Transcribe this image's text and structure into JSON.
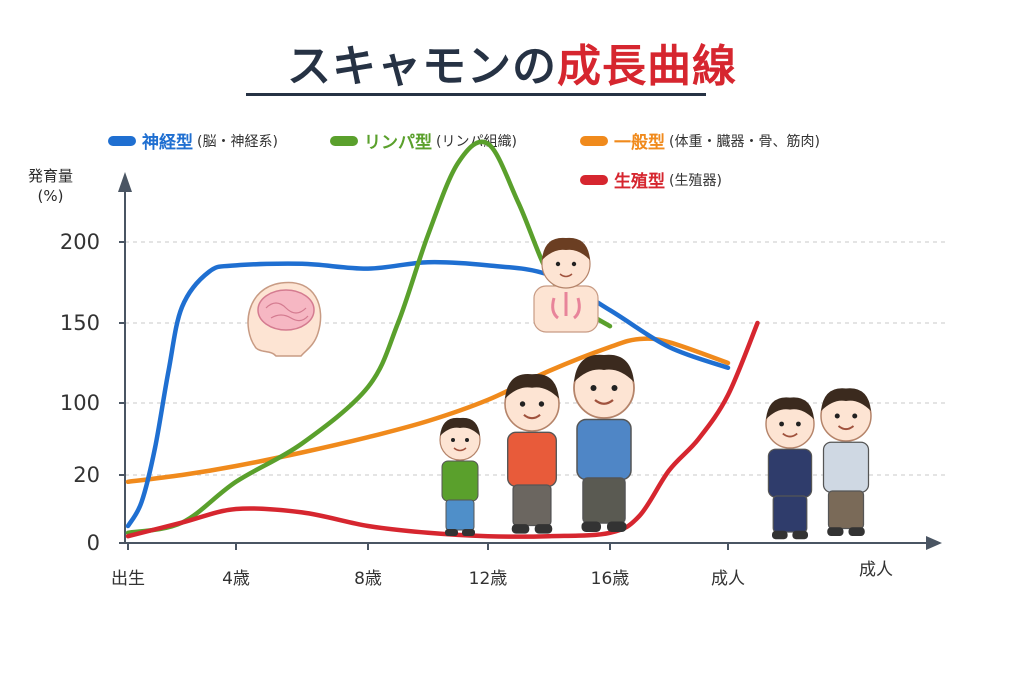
{
  "title": {
    "part1": "スキャモンの",
    "part2": "成長曲線"
  },
  "legend": [
    {
      "name": "神経型",
      "desc": "(脳・神経系)",
      "color": "#1f6fd1"
    },
    {
      "name": "リンパ型",
      "desc": "(リンパ組織)",
      "color": "#5aa02c"
    },
    {
      "name": "一般型",
      "desc": "(体重・臓器・骨、筋肉)",
      "color": "#f08a1c"
    },
    {
      "name": "生殖型",
      "desc": "(生殖器)",
      "color": "#d6262f"
    }
  ],
  "chart_data": {
    "type": "line",
    "title": "スキャモンの成長曲線",
    "ylabel": "発育量\n(%)",
    "ylabel_line1": "発育量",
    "ylabel_line2": "(%)",
    "xlabel": "",
    "x_ticks": [
      "出生",
      "4歳",
      "8歳",
      "12歳",
      "16歳",
      "成人"
    ],
    "x_end_label": "成人",
    "y_ticks": [
      "0",
      "20",
      "100",
      "150",
      "200"
    ],
    "grid": true,
    "legend_position": "top",
    "series": [
      {
        "name": "神経型",
        "x": [
          0,
          0.5,
          1,
          1.5,
          2,
          3,
          4,
          6,
          8,
          10,
          12,
          14,
          16,
          18,
          20
        ],
        "y": [
          5,
          12,
          50,
          120,
          160,
          182,
          186,
          187,
          184,
          188,
          186,
          180,
          158,
          135,
          122
        ]
      },
      {
        "name": "リンパ型",
        "x": [
          0,
          2,
          4,
          6,
          8,
          9,
          10,
          11,
          12,
          13,
          14,
          15,
          16
        ],
        "y": [
          3,
          6,
          18,
          55,
          110,
          150,
          205,
          250,
          262,
          225,
          180,
          160,
          148
        ]
      },
      {
        "name": "一般型",
        "x": [
          0,
          2,
          4,
          6,
          8,
          10,
          12,
          14,
          16,
          17,
          18,
          20
        ],
        "y": [
          18,
          20,
          30,
          45,
          62,
          80,
          102,
          120,
          135,
          140,
          138,
          125
        ]
      },
      {
        "name": "生殖型",
        "x": [
          0,
          2,
          4,
          6,
          8,
          10,
          12,
          14,
          16,
          17,
          18,
          19,
          20,
          21
        ],
        "y": [
          2,
          6,
          10,
          9,
          5,
          3,
          2,
          2,
          3,
          8,
          25,
          60,
          105,
          150
        ]
      }
    ]
  }
}
